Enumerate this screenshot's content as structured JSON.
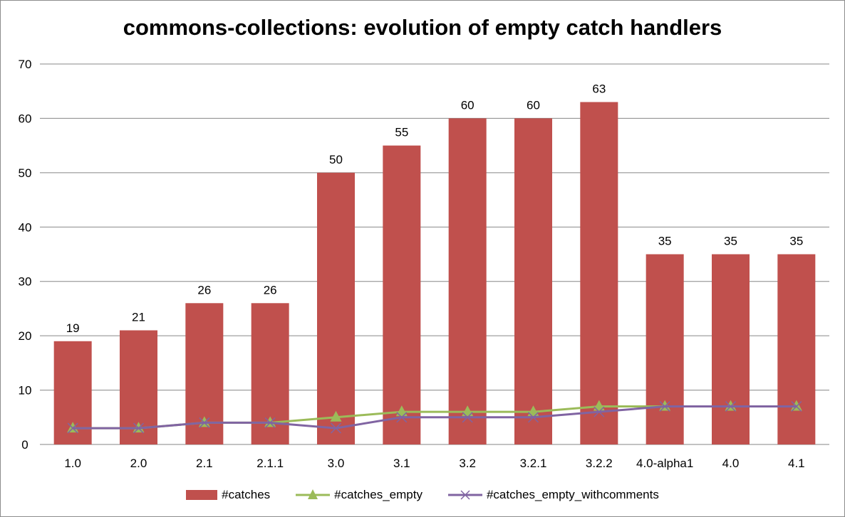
{
  "chart_data": {
    "type": "bar",
    "title": "commons-collections: evolution of empty catch handlers",
    "categories": [
      "1.0",
      "2.0",
      "2.1",
      "2.1.1",
      "3.0",
      "3.1",
      "3.2",
      "3.2.1",
      "3.2.2",
      "4.0-alpha1",
      "4.0",
      "4.1"
    ],
    "ylim": [
      0,
      70
    ],
    "yticks": [
      0,
      10,
      20,
      30,
      40,
      50,
      60,
      70
    ],
    "grid": true,
    "legend_position": "bottom",
    "series": [
      {
        "name": "#catches",
        "type": "bar",
        "color": "#c0504d",
        "values": [
          19,
          21,
          26,
          26,
          50,
          55,
          60,
          60,
          63,
          35,
          35,
          35
        ],
        "data_labels": true
      },
      {
        "name": "#catches_empty",
        "type": "line",
        "color": "#9bbb59",
        "marker": "triangle",
        "values": [
          3,
          3,
          4,
          4,
          5,
          6,
          6,
          6,
          7,
          7,
          7,
          7
        ]
      },
      {
        "name": "#catches_empty_withcomments",
        "type": "line",
        "color": "#8064a2",
        "marker": "x",
        "values": [
          3,
          3,
          4,
          4,
          3,
          5,
          5,
          5,
          6,
          7,
          7,
          7
        ]
      }
    ]
  }
}
